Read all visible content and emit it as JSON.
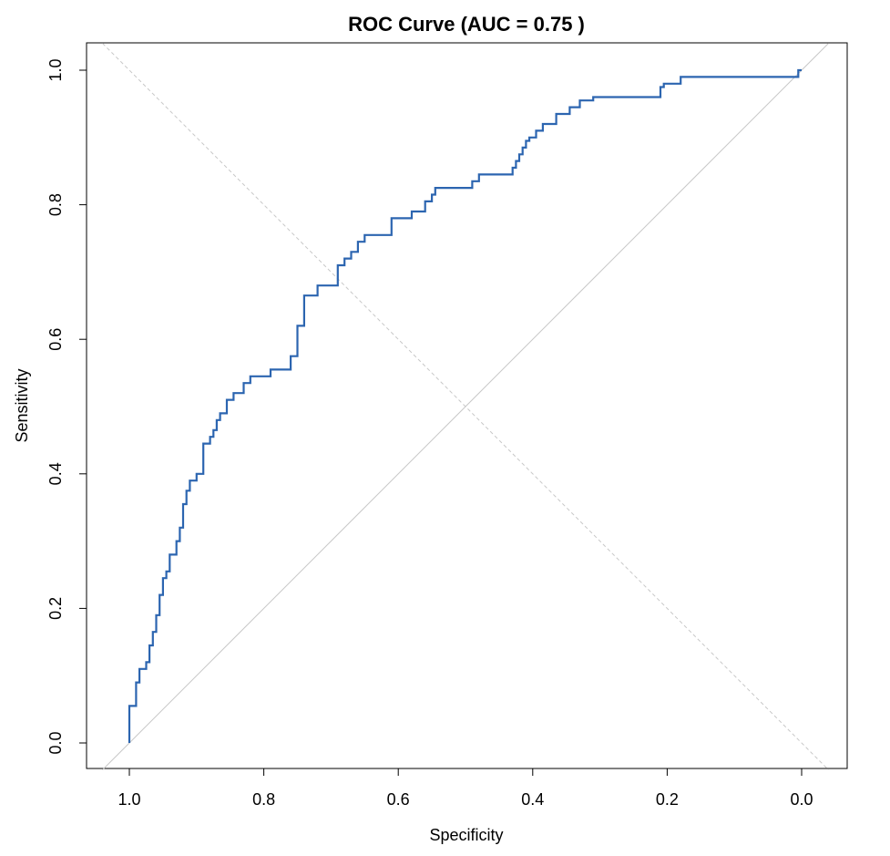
{
  "chart_data": {
    "type": "line",
    "title": "ROC Curve (AUC = 0.75 )",
    "xlabel": "Specificity",
    "ylabel": "Sensitivity",
    "x_reversed": true,
    "xlim": [
      1.0,
      0.0
    ],
    "ylim": [
      0.0,
      1.0
    ],
    "xticks": [
      "1.0",
      "0.8",
      "0.6",
      "0.4",
      "0.2",
      "0.0"
    ],
    "yticks": [
      "0.0",
      "0.2",
      "0.4",
      "0.6",
      "0.8",
      "1.0"
    ],
    "grid": false,
    "reference_line": {
      "from": [
        1.0,
        0.0
      ],
      "to": [
        0.0,
        1.0
      ],
      "color": "#c8c8c8"
    },
    "cross_line": {
      "from": [
        1.0,
        1.0
      ],
      "to": [
        0.0,
        0.0
      ],
      "color": "#c8c8c8",
      "style": "dashed"
    },
    "curve_color": "#2c65b0",
    "series": [
      {
        "specificity": [
          1.0,
          1.0,
          0.99,
          0.99,
          0.985,
          0.985,
          0.975,
          0.975,
          0.97,
          0.97,
          0.965,
          0.965,
          0.96,
          0.96,
          0.955,
          0.955,
          0.95,
          0.95,
          0.945,
          0.945,
          0.94,
          0.94,
          0.93,
          0.93,
          0.925,
          0.925,
          0.92,
          0.92,
          0.915,
          0.915,
          0.91,
          0.91,
          0.9,
          0.9,
          0.89,
          0.89,
          0.88,
          0.88,
          0.875,
          0.875,
          0.87,
          0.87,
          0.865,
          0.865,
          0.855,
          0.855,
          0.845,
          0.845,
          0.83,
          0.83,
          0.82,
          0.82,
          0.79,
          0.79,
          0.76,
          0.76,
          0.75,
          0.75,
          0.74,
          0.74,
          0.72,
          0.72,
          0.69,
          0.69,
          0.68,
          0.68,
          0.67,
          0.67,
          0.66,
          0.66,
          0.65,
          0.65,
          0.61,
          0.61,
          0.605,
          0.605,
          0.58,
          0.58,
          0.56,
          0.56,
          0.55,
          0.55,
          0.545,
          0.545,
          0.49,
          0.49,
          0.48,
          0.48,
          0.43,
          0.43,
          0.425,
          0.425,
          0.42,
          0.42,
          0.415,
          0.415,
          0.41,
          0.41,
          0.405,
          0.405,
          0.395,
          0.395,
          0.385,
          0.385,
          0.365,
          0.365,
          0.345,
          0.345,
          0.33,
          0.33,
          0.31,
          0.31,
          0.21,
          0.21,
          0.205,
          0.205,
          0.18,
          0.18,
          0.005,
          0.005,
          0.0
        ],
        "sensitivity": [
          0.0,
          0.055,
          0.055,
          0.09,
          0.09,
          0.11,
          0.11,
          0.12,
          0.12,
          0.145,
          0.145,
          0.165,
          0.165,
          0.19,
          0.19,
          0.22,
          0.22,
          0.245,
          0.245,
          0.255,
          0.255,
          0.28,
          0.28,
          0.3,
          0.3,
          0.32,
          0.32,
          0.355,
          0.355,
          0.375,
          0.375,
          0.39,
          0.39,
          0.4,
          0.4,
          0.445,
          0.445,
          0.455,
          0.455,
          0.465,
          0.465,
          0.48,
          0.48,
          0.49,
          0.49,
          0.51,
          0.51,
          0.52,
          0.52,
          0.535,
          0.535,
          0.545,
          0.545,
          0.555,
          0.555,
          0.575,
          0.575,
          0.62,
          0.62,
          0.665,
          0.665,
          0.68,
          0.68,
          0.71,
          0.71,
          0.72,
          0.72,
          0.73,
          0.73,
          0.745,
          0.745,
          0.755,
          0.755,
          0.78,
          0.78,
          0.78,
          0.78,
          0.79,
          0.79,
          0.805,
          0.805,
          0.815,
          0.815,
          0.825,
          0.825,
          0.835,
          0.835,
          0.845,
          0.845,
          0.855,
          0.855,
          0.865,
          0.865,
          0.875,
          0.875,
          0.885,
          0.885,
          0.895,
          0.895,
          0.9,
          0.9,
          0.91,
          0.91,
          0.92,
          0.92,
          0.935,
          0.935,
          0.945,
          0.945,
          0.955,
          0.955,
          0.96,
          0.96,
          0.975,
          0.975,
          0.98,
          0.98,
          0.99,
          0.99,
          1.0,
          1.0
        ]
      }
    ]
  }
}
